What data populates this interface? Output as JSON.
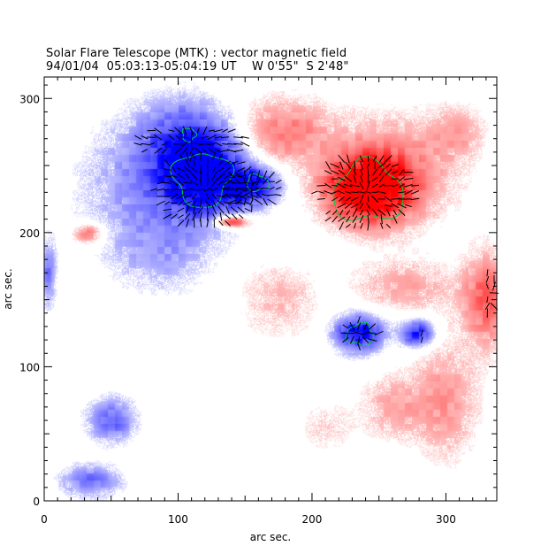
{
  "chart_data": {
    "type": "heatmap",
    "title": "Solar Flare Telescope (MTK) : vector magnetic field",
    "subtitle": "94/01/04  05:03:13-05:04:19 UT    W 0'55\"  S 2'48\"",
    "xlabel": "arc sec.",
    "ylabel": "arc sec.",
    "xlim": [
      0,
      338
    ],
    "ylim": [
      0,
      316
    ],
    "x_ticks": [
      "0",
      "100",
      "200",
      "300"
    ],
    "y_ticks": [
      "0",
      "100",
      "200",
      "300"
    ],
    "colors": {
      "positive_polarity": "#ff0000",
      "negative_polarity": "#0000ff",
      "contour": "#00cc44",
      "vectors": "#000000",
      "background": "#ffffff"
    },
    "negative_regions": [
      {
        "x": 120,
        "y": 240,
        "rx": 32,
        "ry": 30,
        "strength": 1.0
      },
      {
        "x": 105,
        "y": 270,
        "rx": 35,
        "ry": 30,
        "strength": 0.55
      },
      {
        "x": 155,
        "y": 235,
        "rx": 20,
        "ry": 14,
        "strength": 0.8
      },
      {
        "x": 70,
        "y": 235,
        "rx": 45,
        "ry": 45,
        "strength": 0.3
      },
      {
        "x": 90,
        "y": 185,
        "rx": 40,
        "ry": 30,
        "strength": 0.25
      },
      {
        "x": 235,
        "y": 125,
        "rx": 18,
        "ry": 14,
        "strength": 0.9
      },
      {
        "x": 278,
        "y": 125,
        "rx": 13,
        "ry": 10,
        "strength": 0.75
      },
      {
        "x": 50,
        "y": 60,
        "rx": 18,
        "ry": 16,
        "strength": 0.5
      },
      {
        "x": 35,
        "y": 15,
        "rx": 22,
        "ry": 12,
        "strength": 0.45
      },
      {
        "x": 3,
        "y": 170,
        "rx": 6,
        "ry": 25,
        "strength": 0.4
      }
    ],
    "positive_regions": [
      {
        "x": 240,
        "y": 232,
        "rx": 30,
        "ry": 24,
        "strength": 1.0
      },
      {
        "x": 260,
        "y": 245,
        "rx": 45,
        "ry": 40,
        "strength": 0.45
      },
      {
        "x": 180,
        "y": 275,
        "rx": 35,
        "ry": 25,
        "strength": 0.4
      },
      {
        "x": 330,
        "y": 150,
        "rx": 18,
        "ry": 35,
        "strength": 0.5
      },
      {
        "x": 270,
        "y": 160,
        "rx": 40,
        "ry": 20,
        "strength": 0.25
      },
      {
        "x": 300,
        "y": 75,
        "rx": 25,
        "ry": 45,
        "strength": 0.3
      },
      {
        "x": 260,
        "y": 70,
        "rx": 25,
        "ry": 25,
        "strength": 0.25
      },
      {
        "x": 140,
        "y": 208,
        "rx": 14,
        "ry": 5,
        "strength": 0.7
      },
      {
        "x": 33,
        "y": 199,
        "rx": 12,
        "ry": 8,
        "strength": 0.45
      },
      {
        "x": 175,
        "y": 150,
        "rx": 30,
        "ry": 30,
        "strength": 0.2
      },
      {
        "x": 310,
        "y": 275,
        "rx": 20,
        "ry": 20,
        "strength": 0.25
      },
      {
        "x": 210,
        "y": 55,
        "rx": 20,
        "ry": 20,
        "strength": 0.15
      }
    ],
    "vector_patches": [
      {
        "x": 120,
        "y": 232,
        "rx": 38,
        "ry": 30,
        "polarity": -1
      },
      {
        "x": 110,
        "y": 268,
        "rx": 45,
        "ry": 12,
        "polarity": -1
      },
      {
        "x": 155,
        "y": 232,
        "rx": 25,
        "ry": 14,
        "polarity": -1
      },
      {
        "x": 240,
        "y": 230,
        "rx": 38,
        "ry": 30,
        "polarity": 1
      },
      {
        "x": 235,
        "y": 125,
        "rx": 15,
        "ry": 10,
        "polarity": -1
      },
      {
        "x": 282,
        "y": 124,
        "rx": 5,
        "ry": 4,
        "polarity": -1
      },
      {
        "x": 332,
        "y": 155,
        "rx": 6,
        "ry": 20,
        "polarity": 1
      }
    ],
    "contours": [
      {
        "x": 118,
        "y": 240,
        "rx": 21,
        "ry": 20
      },
      {
        "x": 108,
        "y": 273,
        "rx": 5,
        "ry": 5
      },
      {
        "x": 159,
        "y": 237,
        "rx": 8,
        "ry": 6
      },
      {
        "x": 242,
        "y": 230,
        "rx": 26,
        "ry": 22
      },
      {
        "x": 236,
        "y": 124,
        "rx": 10,
        "ry": 8
      }
    ],
    "grid": false
  }
}
